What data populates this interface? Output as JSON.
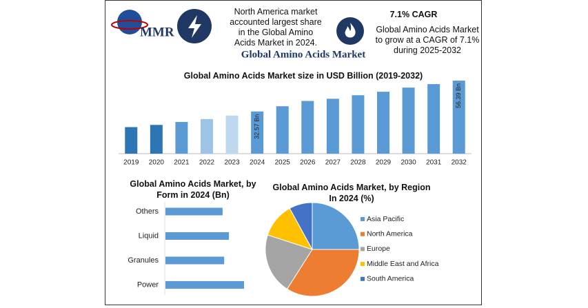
{
  "header": {
    "logo": "MMR",
    "info_left": "North America market accounted largest share in the Global Amino Acids Market in 2024.",
    "info_right_title": "7.1% CAGR",
    "info_right": "Global Amino Acids Market to grow at a CAGR of 7.1% during 2025-2032",
    "title": "Global Amino Acids Market"
  },
  "chart_data": [
    {
      "type": "bar",
      "title": "Global Amino Acids Market size in USD Billion (2019-2032)",
      "categories": [
        "2019",
        "2020",
        "2021",
        "2022",
        "2023",
        "2024",
        "2025",
        "2026",
        "2027",
        "2028",
        "2029",
        "2030",
        "2031",
        "2032"
      ],
      "values": [
        20.5,
        22.2,
        24.5,
        26.7,
        29.4,
        32.57,
        36.6,
        40.7,
        42.4,
        45.1,
        47.8,
        51.0,
        53.7,
        56.39
      ],
      "value_labels": [
        null,
        null,
        null,
        null,
        null,
        "32.57 Bn",
        null,
        null,
        null,
        null,
        null,
        null,
        null,
        "56.39 Bn"
      ],
      "colors": [
        "#2e75b6",
        "#2e75b6",
        "#5b9bd5",
        "#9dc3e6",
        "#bdd7ee",
        "#5b9bd5",
        "#5b9bd5",
        "#5b9bd5",
        "#5b9bd5",
        "#5b9bd5",
        "#5b9bd5",
        "#5b9bd5",
        "#5b9bd5",
        "#5b9bd5"
      ]
    },
    {
      "type": "hbar",
      "title": "Global Amino Acids Market, by Form in 2024 (Bn)",
      "categories": [
        "Others",
        "Liquid",
        "Granules",
        "Power"
      ],
      "values": [
        7.2,
        8.0,
        7.4,
        9.9
      ],
      "color": "#5b9bd5"
    },
    {
      "type": "pie",
      "title": "Global Amino Acids Market, by Region In 2024 (%)",
      "categories": [
        "Asia Pacific",
        "North America",
        "Europe",
        "Middle East and Africa",
        "South America"
      ],
      "values": [
        25,
        34,
        21,
        12,
        8
      ],
      "colors": [
        "#5b9bd5",
        "#ed7d31",
        "#a5a5a5",
        "#ffc000",
        "#4472c4"
      ]
    }
  ]
}
